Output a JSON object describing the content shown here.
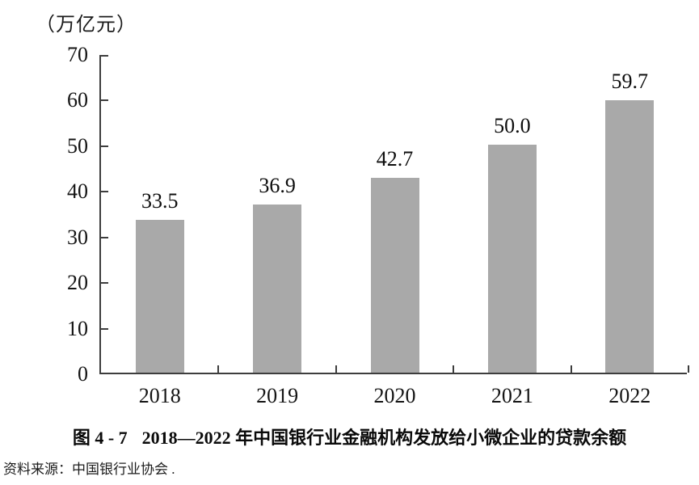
{
  "chart_data": {
    "type": "bar",
    "categories": [
      "2018",
      "2019",
      "2020",
      "2021",
      "2022"
    ],
    "values": [
      33.5,
      36.9,
      42.7,
      50.0,
      59.7
    ],
    "value_labels": [
      "33.5",
      "36.9",
      "42.7",
      "50.0",
      "59.7"
    ],
    "series_name": "中国银行业金融机构发放给小微企业的贷款余额",
    "unit_label": "（万亿元）",
    "title": "图 4 - 7　2018—2022 年中国银行业金融机构发放给小微企业的贷款余额",
    "xlabel": "",
    "ylabel": "万亿元",
    "ylim": [
      0,
      70
    ],
    "ytick_step": 10,
    "ytick_labels": [
      "0",
      "10",
      "20",
      "30",
      "40",
      "50",
      "60",
      "70"
    ],
    "grid": false,
    "legend": "none",
    "bar_color": "#a9a9a9",
    "axis_color": "#3d3d3d"
  },
  "caption": {
    "label": "图 4 - 7",
    "title": "2018—2022 年中国银行业金融机构发放给小微企业的贷款余额"
  },
  "source": "资料来源：中国银行业协会 ."
}
